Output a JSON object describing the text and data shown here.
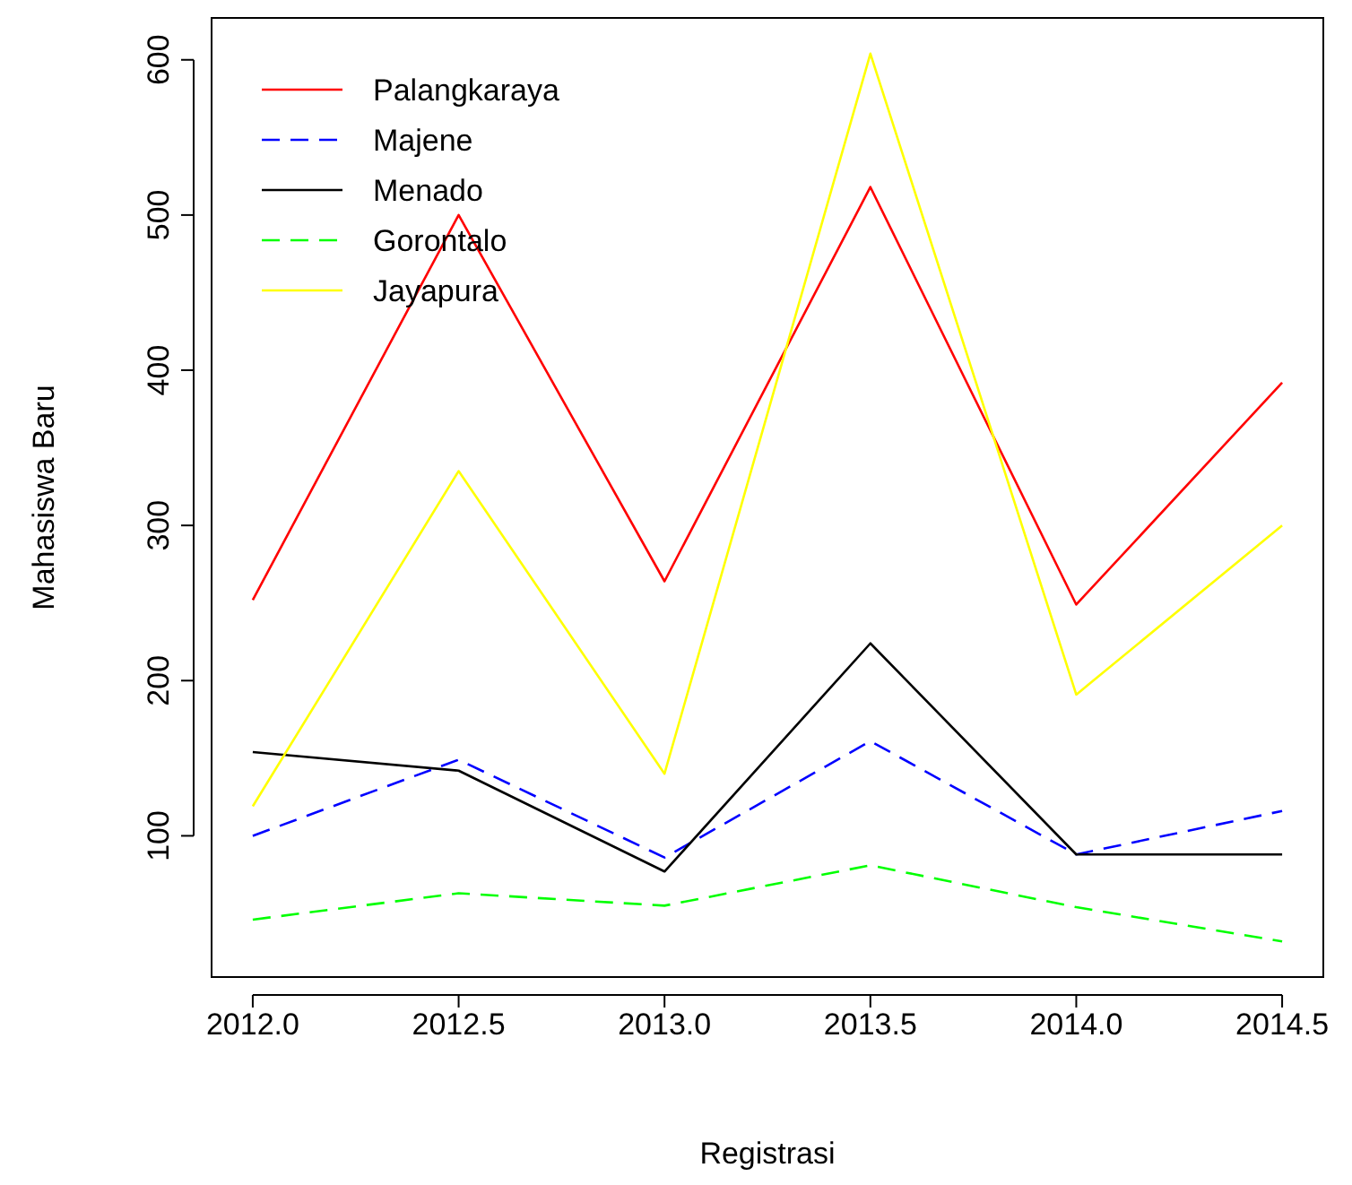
{
  "chart_data": {
    "type": "line",
    "xlabel": "Registrasi",
    "ylabel": "Mahasiswa Baru",
    "x": [
      2012.0,
      2012.5,
      2013.0,
      2013.5,
      2014.0,
      2014.5
    ],
    "xlim": [
      2011.9,
      2014.6
    ],
    "xticks": [
      {
        "value": 2012,
        "label": "2012.0"
      },
      {
        "value": 2012.5,
        "label": "2012.5"
      },
      {
        "value": 2013,
        "label": "2013.0"
      },
      {
        "value": 2013.5,
        "label": "2013.5"
      },
      {
        "value": 2014,
        "label": "2014.0"
      },
      {
        "value": 2014.5,
        "label": "2014.5"
      }
    ],
    "ylim": [
      9,
      627
    ],
    "yticks": [
      100,
      200,
      300,
      400,
      500,
      600
    ],
    "legend": "top left",
    "grid": false,
    "series": [
      {
        "name": "Palangkaraya",
        "color": "#ff0000",
        "line_style": "solid",
        "values": [
          252,
          500,
          264,
          518,
          249,
          392
        ]
      },
      {
        "name": "Majene",
        "color": "#0000ff",
        "line_style": "dashed",
        "values": [
          100,
          149,
          86,
          161,
          88,
          116
        ]
      },
      {
        "name": "Menado",
        "color": "#000000",
        "line_style": "solid",
        "values": [
          154,
          142,
          77,
          224,
          88,
          88
        ]
      },
      {
        "name": "Gorontalo",
        "color": "#00ff00",
        "line_style": "dashed",
        "values": [
          46,
          63,
          55,
          81,
          54,
          32
        ]
      },
      {
        "name": "Jayapura",
        "color": "#ffff00",
        "line_style": "solid",
        "values": [
          119,
          335,
          140,
          604,
          191,
          300
        ]
      }
    ]
  }
}
